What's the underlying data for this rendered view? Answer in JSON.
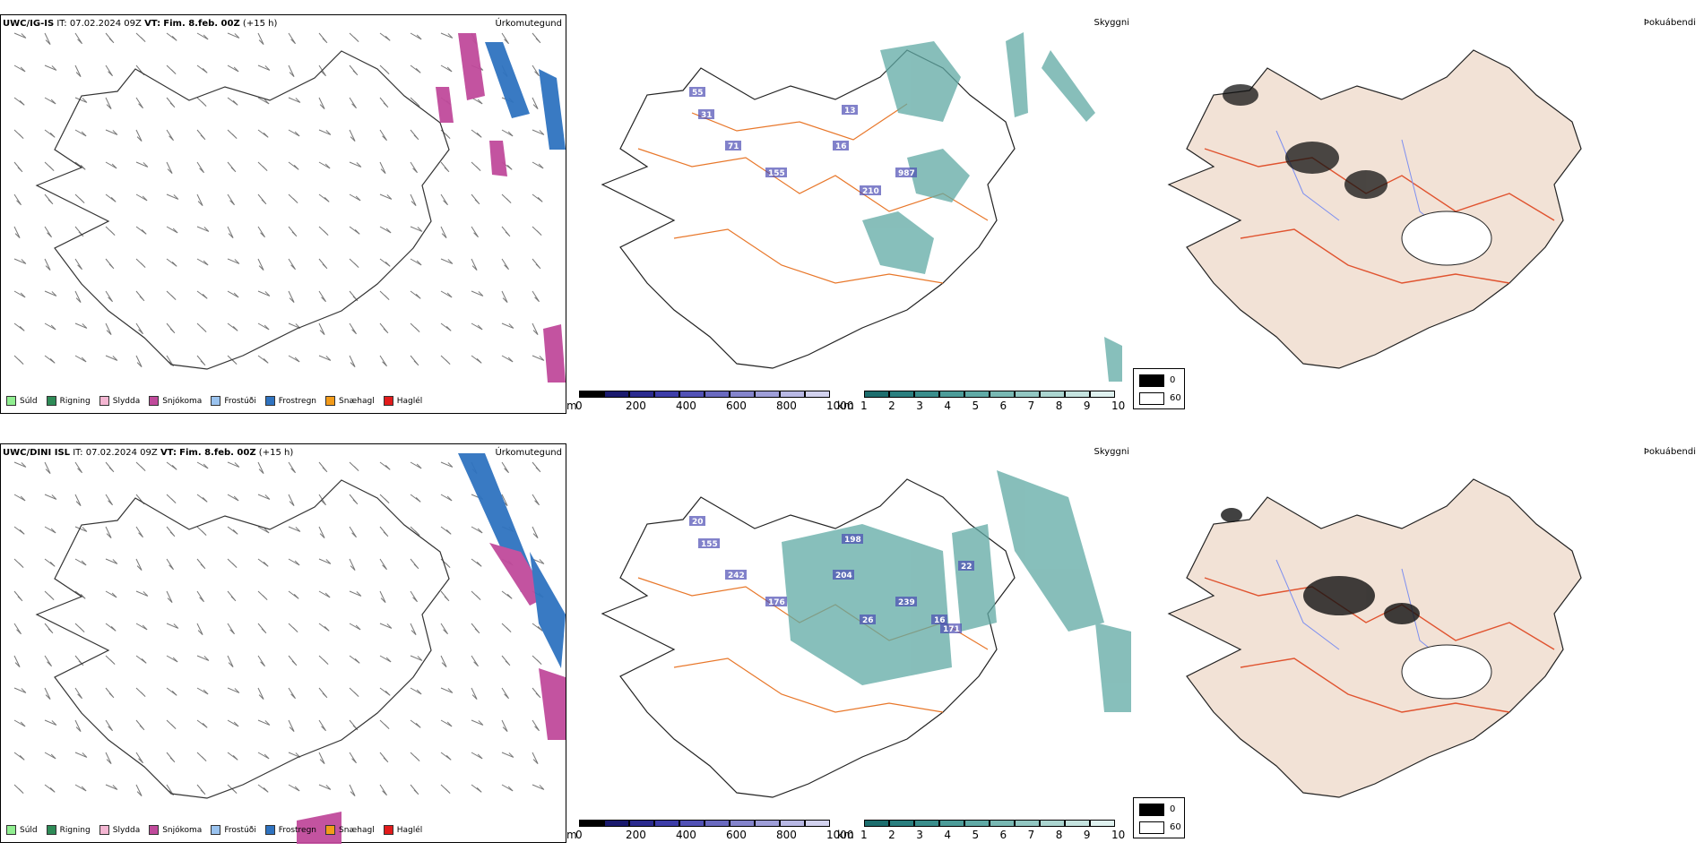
{
  "rows": [
    {
      "header": {
        "model": "UWC/IG-IS",
        "it_label": "IT:",
        "it_value": "07.02.2024 09Z",
        "vt_label": "VT:",
        "vt_value": "Fim. 8.feb. 00Z",
        "offset": "(+15 h)"
      },
      "panels": [
        {
          "title": "Úrkomutegund"
        },
        {
          "title": "Skyggni",
          "labels": [
            "55",
            "31",
            "71",
            "155",
            "16",
            "13",
            "210",
            "987"
          ]
        },
        {
          "title": "Þokuábendi"
        }
      ]
    },
    {
      "header": {
        "model": "UWC/DINI ISL",
        "it_label": "IT:",
        "it_value": "07.02.2024 09Z",
        "vt_label": "VT:",
        "vt_value": "Fim. 8.feb. 00Z",
        "offset": "(+15 h)"
      },
      "panels": [
        {
          "title": "Úrkomutegund"
        },
        {
          "title": "Skyggni",
          "labels": [
            "20",
            "155",
            "242",
            "176",
            "204",
            "198",
            "26",
            "239",
            "16",
            "171",
            "22"
          ]
        },
        {
          "title": "Þokuábendi"
        }
      ]
    }
  ],
  "precip_legend": [
    {
      "label": "Súld",
      "color": "#90ee90"
    },
    {
      "label": "Rigning",
      "color": "#2e8b57"
    },
    {
      "label": "Slydda",
      "color": "#f4b6d2"
    },
    {
      "label": "Snjókoma",
      "color": "#c04a9b"
    },
    {
      "label": "Frostúði",
      "color": "#9ac3ef"
    },
    {
      "label": "Frostregn",
      "color": "#2f73c0"
    },
    {
      "label": "Snæhagl",
      "color": "#f29b1a"
    },
    {
      "label": "Haglél",
      "color": "#e21b1b"
    }
  ],
  "height_bar": {
    "unit": "m",
    "ticks": [
      "0",
      "200",
      "400",
      "600",
      "800",
      "1000"
    ],
    "colors": [
      "#000000",
      "#1a1a6e",
      "#2b2b8f",
      "#3d3da8",
      "#5252b6",
      "#6a6ac0",
      "#8484cc",
      "#9e9ed8",
      "#b8b8e4",
      "#d2d2ee"
    ]
  },
  "visibility_bar": {
    "unit": "km",
    "ticks": [
      "1",
      "2",
      "3",
      "4",
      "5",
      "6",
      "7",
      "8",
      "9",
      "10"
    ],
    "colors": [
      "#1d6e6e",
      "#2a7f7f",
      "#3a8e8c",
      "#4c9c99",
      "#60aaa6",
      "#78b8b3",
      "#92c7c2",
      "#abd5d0",
      "#c5e3df",
      "#dff1ef"
    ]
  },
  "fog_legend": [
    {
      "label": "0",
      "color": "#000000"
    },
    {
      "label": "60",
      "color": "#ffffff"
    }
  ],
  "colors": {
    "land": "#f2e2d6",
    "roads": "#e8772a",
    "rivers": "#7d8ff0",
    "vis": "#5fa9a4",
    "snow": "#c04a9b",
    "frz": "#2f73c0"
  }
}
